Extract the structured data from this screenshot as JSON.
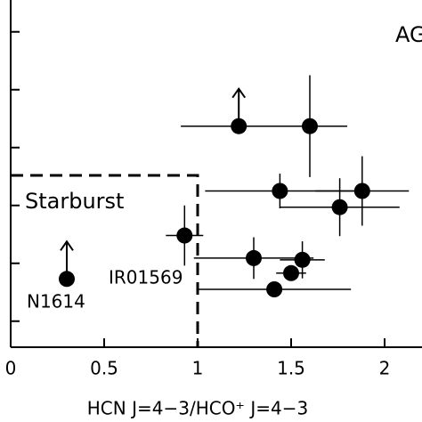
{
  "chart_data": {
    "type": "scatter",
    "xlabel": "HCN J=4−3/HCO⁺ J=4−3",
    "xlim": [
      0,
      2.2
    ],
    "xticks": [
      0,
      0.5,
      1,
      1.5,
      2
    ],
    "ylim": [
      -0.45,
      5.55
    ],
    "yticks": [
      0,
      1,
      2,
      3,
      4,
      5
    ],
    "series": [
      {
        "color": "#000000",
        "x": [
          1.22,
          1.6,
          1.44,
          1.88,
          1.76,
          0.93,
          1.3,
          1.56,
          1.5,
          1.41,
          0.3
        ],
        "values": [
          3.37,
          3.37,
          2.25,
          2.25,
          1.97,
          1.48,
          1.09,
          1.06,
          0.83,
          0.55,
          0.73
        ],
        "xerr": [
          0.31,
          0.2,
          0.4,
          0.25,
          0.32,
          0.1,
          0.32,
          0.12,
          0.08,
          0.41,
          0
        ],
        "yerr": [
          0,
          0.88,
          0.3,
          0.6,
          0.5,
          0.52,
          0.36,
          0.32,
          0,
          0,
          0
        ],
        "lower_limit": [
          true,
          false,
          false,
          false,
          false,
          false,
          false,
          false,
          false,
          false,
          true
        ]
      }
    ],
    "region": {
      "label": "Starburst",
      "x_max": 1,
      "y_min": 2.52
    },
    "annotations": [
      "IR01569",
      "N1614",
      "AGN"
    ]
  }
}
